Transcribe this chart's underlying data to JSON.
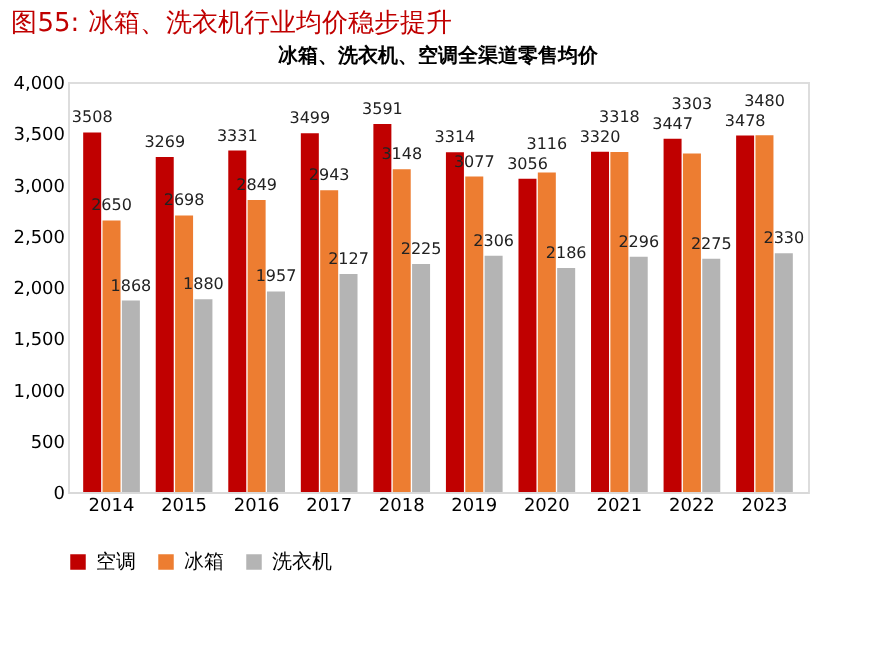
{
  "chart_data": {
    "type": "bar",
    "title": "图55:   冰箱、洗衣机行业均价稳步提升",
    "subtitle": "冰箱、洗衣机、空调全渠道零售均价",
    "categories": [
      "2014",
      "2015",
      "2016",
      "2017",
      "2018",
      "2019",
      "2020",
      "2021",
      "2022",
      "2023"
    ],
    "series": [
      {
        "name": "空调",
        "color": "#c00000",
        "values": [
          3508,
          3269,
          3331,
          3499,
          3591,
          3314,
          3056,
          3320,
          3447,
          3478
        ]
      },
      {
        "name": "冰箱",
        "color": "#ed7d31",
        "values": [
          2650,
          2698,
          2849,
          2943,
          3148,
          3077,
          3116,
          3318,
          3303,
          3480
        ]
      },
      {
        "name": "洗衣机",
        "color": "#b4b4b4",
        "values": [
          1868,
          1880,
          1957,
          2127,
          2225,
          2306,
          2186,
          2296,
          2275,
          2330
        ]
      }
    ],
    "ylim": [
      0,
      4000
    ],
    "yticks": [
      0,
      {
        "value": 500,
        "label": "500"
      },
      {
        "value": 1000,
        "label": "1,000"
      },
      {
        "value": 1500,
        "label": "1,500"
      },
      {
        "value": 2000,
        "label": "2,000"
      },
      {
        "value": 2500,
        "label": "2,500"
      },
      {
        "value": 3000,
        "label": "3,000"
      },
      {
        "value": 3500,
        "label": "3,500"
      },
      {
        "value": 4000,
        "label": "4,000"
      }
    ],
    "data_labels": true,
    "grid": false,
    "legend": "bottom"
  }
}
